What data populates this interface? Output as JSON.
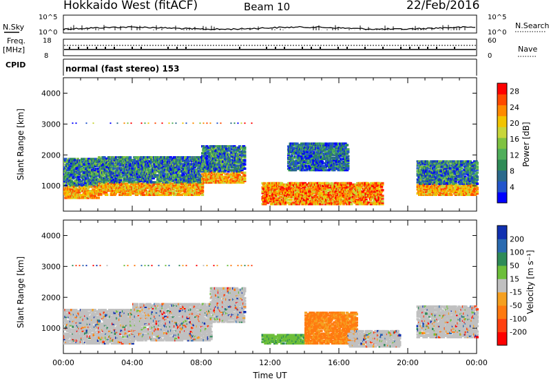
{
  "header": {
    "station": "Hokkaido West (fitACF)",
    "beam": "Beam 10",
    "date": "22/Feb/2016"
  },
  "top_panels": {
    "nsky_label": "N.Sky",
    "nsky_ticks": [
      "10^5",
      "10^0"
    ],
    "nsearch_label": "N.Search",
    "nsearch_ticks": [
      "10^5",
      "10^0"
    ],
    "freq_label": "Freq.",
    "freq_unit": "[MHz]",
    "freq_ticks": [
      "18",
      "8"
    ],
    "nave_label": "Nave",
    "nave_ticks": [
      "60",
      "0"
    ],
    "cpid_label": "CPID",
    "cpid_text": "normal (fast stereo) 153"
  },
  "chart_data": [
    {
      "type": "heatmap",
      "title": "",
      "ylabel": "Slant Range [km]",
      "xlabel": "",
      "xlim": [
        0,
        24
      ],
      "ylim": [
        180,
        4500
      ],
      "yticks": [
        "1000",
        "2000",
        "3000",
        "4000"
      ],
      "colorbar": {
        "label": "Power [dB]",
        "ticks": [
          "4",
          "8",
          "12",
          "16",
          "20",
          "24",
          "28"
        ],
        "range": [
          0,
          30
        ],
        "colors": [
          "#0000ff",
          "#2255cc",
          "#2a6a8c",
          "#2e8b57",
          "#4fae5a",
          "#7fc241",
          "#c8d63a",
          "#f2c400",
          "#ff8a00",
          "#ff4a00",
          "#ff0000"
        ]
      },
      "bands": [
        {
          "t0": 0.0,
          "t1": 2.0,
          "r0": 600,
          "r1": 1900,
          "level": "mixed"
        },
        {
          "t0": 2.0,
          "t1": 8.0,
          "r0": 700,
          "r1": 1950,
          "level": "mixed"
        },
        {
          "t0": 8.0,
          "t1": 10.5,
          "r0": 1100,
          "r1": 2300,
          "level": "mixed"
        },
        {
          "t0": 11.5,
          "t1": 18.5,
          "r0": 400,
          "r1": 1100,
          "level": "high"
        },
        {
          "t0": 13.0,
          "t1": 16.5,
          "r0": 1500,
          "r1": 2400,
          "level": "low"
        },
        {
          "t0": 20.5,
          "t1": 24.0,
          "r0": 700,
          "r1": 1800,
          "level": "mixed"
        }
      ]
    },
    {
      "type": "heatmap",
      "title": "",
      "ylabel": "Slant Range [km]",
      "xlabel": "Time UT",
      "xlim": [
        0,
        24
      ],
      "ylim": [
        180,
        4500
      ],
      "yticks": [
        "1000",
        "2000",
        "3000",
        "4000"
      ],
      "xticks": [
        "00:00",
        "04:00",
        "08:00",
        "12:00",
        "16:00",
        "20:00",
        "00:00"
      ],
      "colorbar": {
        "label": "Velocity [m s⁻¹]",
        "ticks": [
          "200",
          "100",
          "50",
          "15",
          "-15",
          "-50",
          "-100",
          "-200"
        ],
        "colors": [
          "#1030b0",
          "#2a6ab0",
          "#2e8b57",
          "#6dbf3a",
          "#c0c0c0",
          "#f5a020",
          "#ff7a10",
          "#ff4010",
          "#ff0000"
        ]
      },
      "bands": [
        {
          "t0": 0.0,
          "t1": 4.0,
          "r0": 500,
          "r1": 1600,
          "level": "gray"
        },
        {
          "t0": 4.0,
          "t1": 8.5,
          "r0": 600,
          "r1": 1800,
          "level": "gray"
        },
        {
          "t0": 8.5,
          "t1": 10.5,
          "r0": 1200,
          "r1": 2300,
          "level": "gray"
        },
        {
          "t0": 11.5,
          "t1": 14.0,
          "r0": 500,
          "r1": 800,
          "level": "green"
        },
        {
          "t0": 14.0,
          "t1": 17.0,
          "r0": 500,
          "r1": 1500,
          "level": "orange"
        },
        {
          "t0": 16.5,
          "t1": 19.5,
          "r0": 400,
          "r1": 900,
          "level": "gray"
        },
        {
          "t0": 20.5,
          "t1": 24.0,
          "r0": 700,
          "r1": 1700,
          "level": "gray"
        }
      ]
    }
  ]
}
